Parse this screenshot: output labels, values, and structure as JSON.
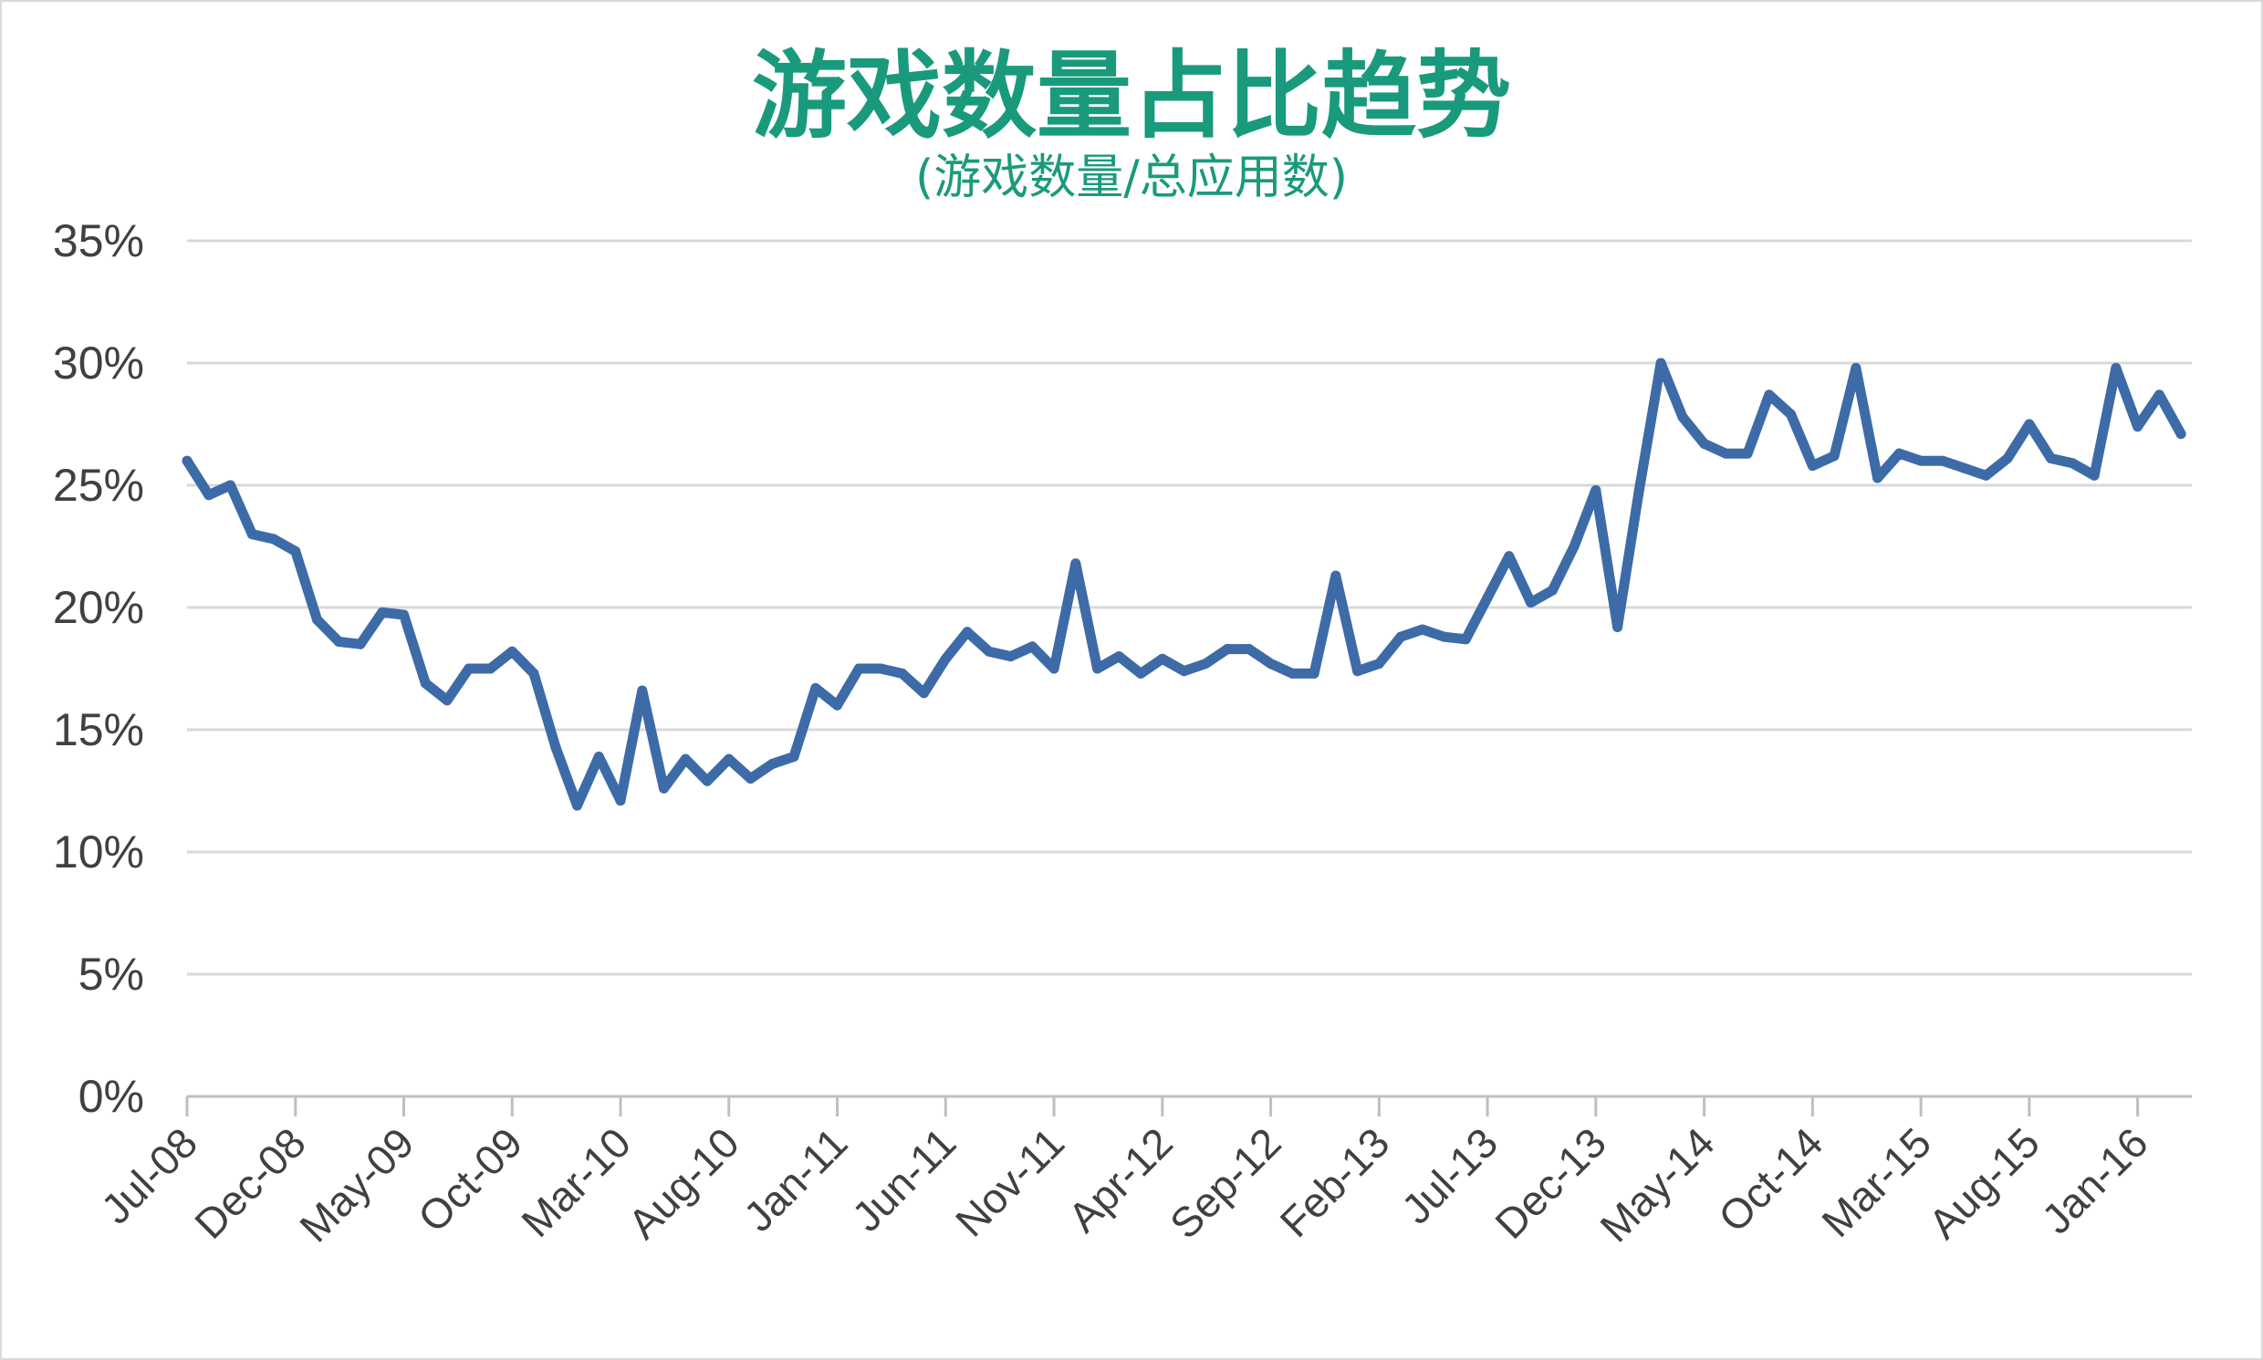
{
  "chart_data": {
    "type": "line",
    "title": "游戏数量占比趋势",
    "subtitle": "(游戏数量/总应用数)",
    "xlabel": "",
    "ylabel": "",
    "ylim": [
      0,
      35
    ],
    "yticks": [
      "0%",
      "5%",
      "10%",
      "15%",
      "20%",
      "25%",
      "30%",
      "35%"
    ],
    "xticks": [
      "Jul-08",
      "Dec-08",
      "May-09",
      "Oct-09",
      "Mar-10",
      "Aug-10",
      "Jan-11",
      "Jun-11",
      "Nov-11",
      "Apr-12",
      "Sep-12",
      "Feb-13",
      "Jul-13",
      "Dec-13",
      "May-14",
      "Oct-14",
      "Mar-15",
      "Aug-15",
      "Jan-16"
    ],
    "grid": true,
    "legend": "none",
    "line_color": "#3d6ba8",
    "series": [
      {
        "values": [
          26.0,
          24.6,
          25.0,
          23.0,
          22.8,
          22.3,
          19.5,
          18.6,
          18.5,
          19.8,
          19.7,
          16.9,
          16.2,
          17.5,
          17.5,
          18.2,
          17.3,
          14.3,
          11.9,
          13.9,
          12.1,
          16.6,
          12.6,
          13.8,
          12.9,
          13.8,
          13.0,
          13.6,
          13.9,
          16.7,
          16.0,
          17.5,
          17.5,
          17.3,
          16.5,
          17.9,
          19.0,
          18.2,
          18.0,
          18.4,
          17.5,
          21.8,
          17.5,
          18.0,
          17.3,
          17.9,
          17.4,
          17.7,
          18.3,
          18.3,
          17.7,
          17.3,
          17.3,
          21.3,
          17.4,
          17.7,
          18.8,
          19.1,
          18.8,
          18.7,
          20.4,
          22.1,
          20.2,
          20.7,
          22.5,
          24.8,
          19.2,
          24.8,
          30.0,
          27.8,
          26.7,
          26.3,
          26.3,
          28.7,
          27.9,
          25.8,
          26.2,
          29.8,
          25.3,
          26.3,
          26.0,
          26.0,
          25.7,
          25.4,
          26.1,
          27.5,
          26.1,
          25.9,
          25.4,
          29.8,
          27.4,
          28.7,
          27.1
        ]
      }
    ]
  }
}
